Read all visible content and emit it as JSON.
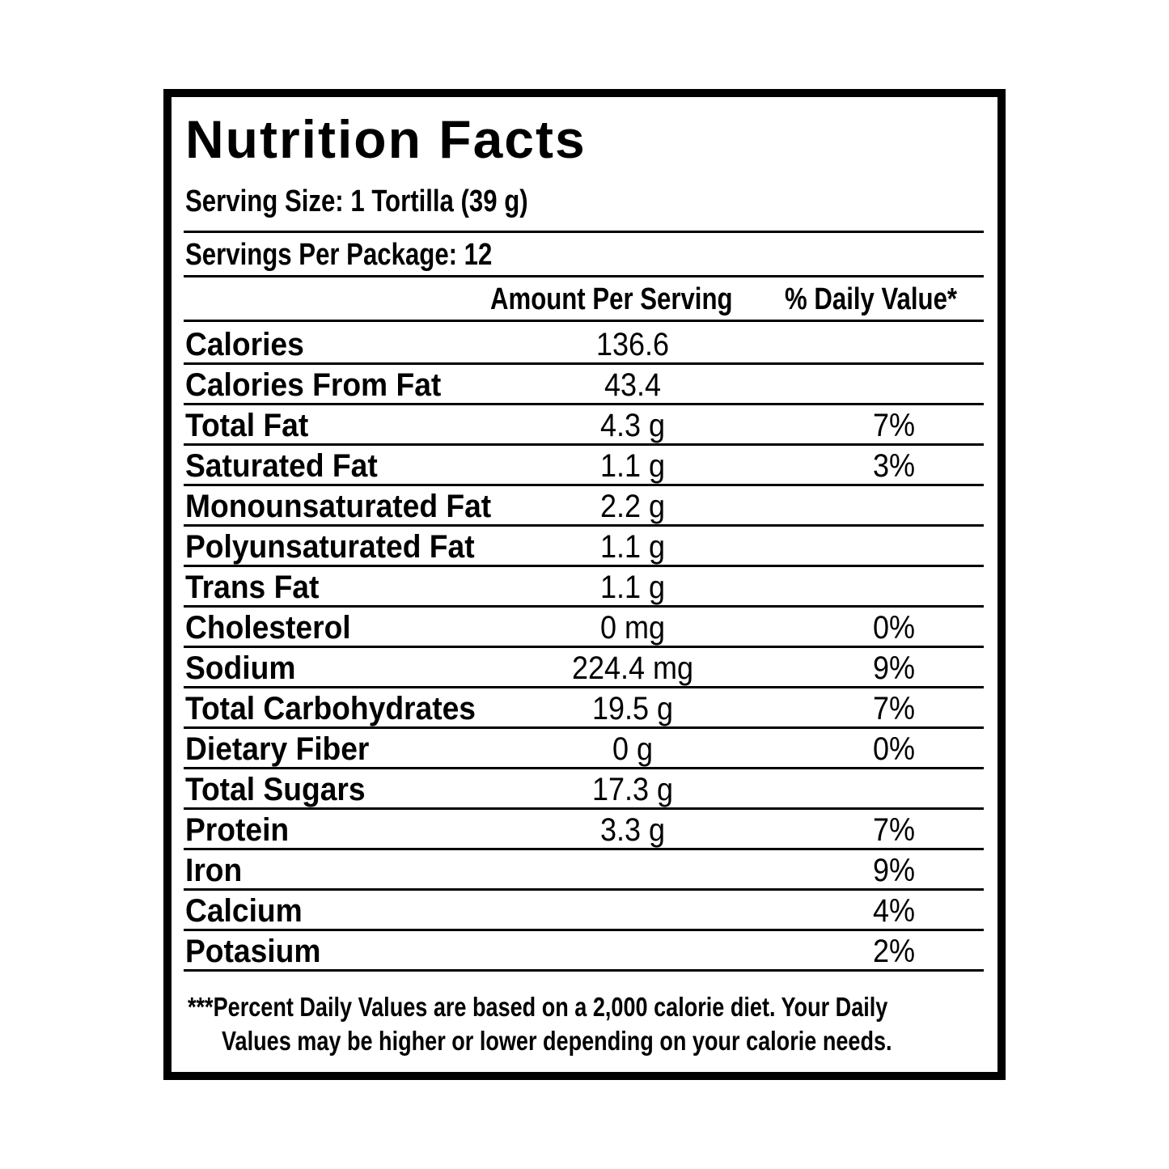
{
  "header": {
    "title": "Nutrition Facts",
    "serving_size": "Serving Size: 1 Tortilla (39 g)",
    "servings_per_package": "Servings Per Package: 12"
  },
  "table": {
    "columns": [
      "Amount Per Serving",
      "% Daily Value*"
    ],
    "rows": [
      {
        "name": "Calories",
        "amount": "136.6"
      },
      {
        "name": "Calories From Fat",
        "amount": "43.4"
      },
      {
        "name": "Total Fat",
        "amount": "4.3 g",
        "daily_value": "7%"
      },
      {
        "name": "Saturated Fat",
        "amount": "1.1 g",
        "daily_value": "3%"
      },
      {
        "name": "Monounsaturated Fat",
        "amount": "2.2 g"
      },
      {
        "name": "Polyunsaturated Fat",
        "amount": "1.1 g"
      },
      {
        "name": "Trans Fat",
        "amount": "1.1 g"
      },
      {
        "name": "Cholesterol",
        "amount": "0 mg",
        "daily_value": "0%"
      },
      {
        "name": "Sodium",
        "amount": "224.4 mg",
        "daily_value": "9%"
      },
      {
        "name": "Total Carbohydrates",
        "amount": "19.5 g",
        "daily_value": "7%"
      },
      {
        "name": "Dietary Fiber",
        "amount": "0 g",
        "daily_value": "0%"
      },
      {
        "name": "Total Sugars",
        "amount": "17.3 g"
      },
      {
        "name": "Protein",
        "amount": "3.3 g",
        "daily_value": "7%"
      },
      {
        "name": "Iron",
        "daily_value": "9%"
      },
      {
        "name": "Calcium",
        "daily_value": "4%"
      },
      {
        "name": "Potasium",
        "daily_value": "2%"
      }
    ]
  },
  "footnote": {
    "lines": [
      "***Percent Daily Values are based on a 2,000 calorie diet. Your Daily",
      "Values may be higher or lower depending on your calorie needs."
    ]
  }
}
